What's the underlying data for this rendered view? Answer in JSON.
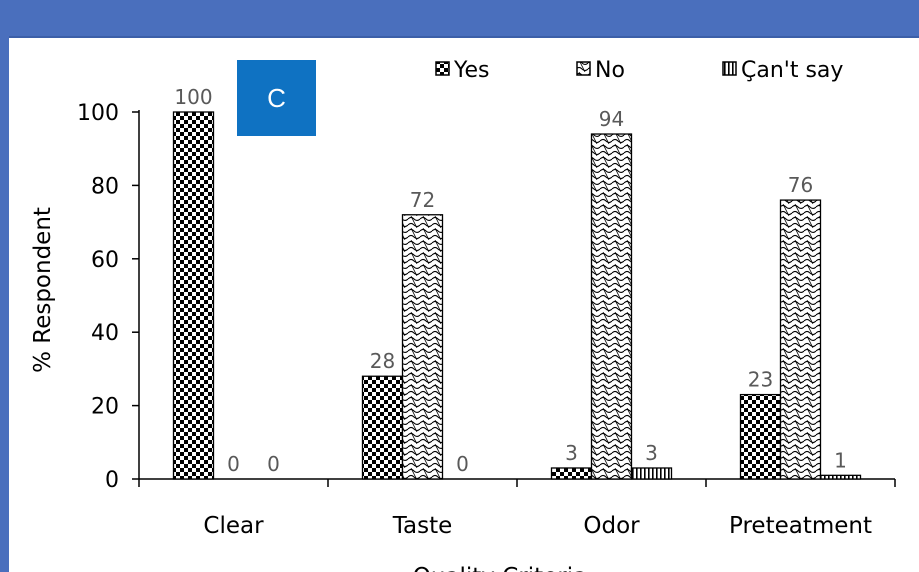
{
  "panel_label": "C",
  "chart_data": {
    "type": "bar",
    "categories": [
      "Clear",
      "Taste",
      "Odor",
      "Preteatment"
    ],
    "series": [
      {
        "name": "Yes",
        "values": [
          100,
          28,
          3,
          23
        ],
        "pattern": "checker"
      },
      {
        "name": "No",
        "values": [
          0,
          72,
          94,
          76
        ],
        "pattern": "wave"
      },
      {
        "name": "Can't say",
        "values": [
          0,
          0,
          3,
          1
        ],
        "pattern": "vertical"
      }
    ],
    "data_labels": [
      [
        "100",
        "28",
        "3",
        "23"
      ],
      [
        "0",
        "72",
        "94",
        "76"
      ],
      [
        "0",
        "0",
        "3",
        "1"
      ]
    ],
    "yticks": [
      0,
      20,
      40,
      60,
      80,
      100
    ],
    "ylim": [
      0,
      100
    ],
    "ylabel": "% Respondent",
    "xlabel": "Quality Criteria",
    "legend_position": "top-right",
    "legend_labels": [
      "Yes",
      "No",
      "Çan't say"
    ],
    "colors": {
      "bar_fill": "#000000",
      "bar_bg": "#ffffff",
      "axis": "#000000",
      "label": "#595959",
      "frame": "#4a6fbd",
      "badge": "#0f72c2"
    }
  }
}
